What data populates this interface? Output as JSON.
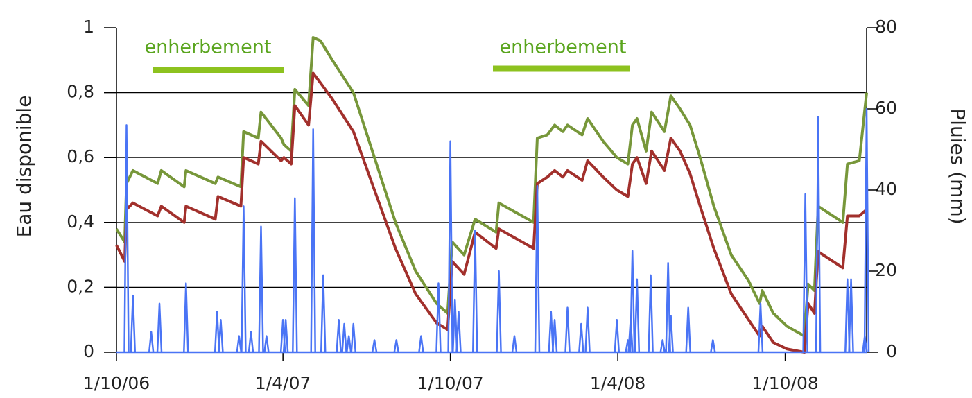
{
  "chart_data": {
    "type": "line",
    "annotations": [
      "enherbement",
      "enherbement"
    ],
    "ylabel": "Eau disponible",
    "y2label": "Pluies (mm)",
    "xlim": [
      "2006-10-01",
      "2008-12-29"
    ],
    "xticks": [
      {
        "value": "2006-10-01",
        "label": "1/10/06"
      },
      {
        "value": "2007-04-01",
        "label": "1/4/07"
      },
      {
        "value": "2007-10-01",
        "label": "1/10/07"
      },
      {
        "value": "2008-04-01",
        "label": "1/4/08"
      },
      {
        "value": "2008-10-01",
        "label": "1/10/08"
      }
    ],
    "ylim": [
      0,
      1
    ],
    "yticks": [
      0,
      {
        "value": 0.2,
        "label": "0,2"
      },
      {
        "value": 0.4,
        "label": "0,4"
      },
      {
        "value": 0.6,
        "label": "0,6"
      },
      {
        "value": 0.8,
        "label": "0,8"
      },
      1
    ],
    "y2lim": [
      0,
      80
    ],
    "y2ticks": [
      0,
      20,
      40,
      60,
      80
    ],
    "grid": true,
    "series": [
      {
        "color": "#77973a",
        "x": [
          "2006-10-01",
          "2006-10-10",
          "2006-10-12",
          "2006-10-19",
          "2006-11-15",
          "2006-11-19",
          "2006-12-14",
          "2006-12-16",
          "2007-01-17",
          "2007-01-20",
          "2007-02-14",
          "2007-02-17",
          "2007-03-05",
          "2007-03-08",
          "2007-03-30",
          "2007-04-02",
          "2007-04-10",
          "2007-04-14",
          "2007-04-29",
          "2007-05-04",
          "2007-05-12",
          "2007-05-25",
          "2007-06-17",
          "2007-07-10",
          "2007-08-02",
          "2007-08-24",
          "2007-09-16",
          "2007-09-28",
          "2007-10-03",
          "2007-10-16",
          "2007-10-28",
          "2007-11-20",
          "2007-11-23",
          "2007-12-31",
          "2008-01-04",
          "2008-01-15",
          "2008-01-23",
          "2008-02-01",
          "2008-02-06",
          "2008-02-22",
          "2008-02-28",
          "2008-03-16",
          "2008-03-31",
          "2008-04-12",
          "2008-04-17",
          "2008-04-22",
          "2008-05-02",
          "2008-05-08",
          "2008-05-22",
          "2008-05-29",
          "2008-06-08",
          "2008-06-19",
          "2008-06-30",
          "2008-07-15",
          "2008-08-03",
          "2008-08-22",
          "2008-09-03",
          "2008-09-06",
          "2008-09-18",
          "2008-10-03",
          "2008-10-22",
          "2008-10-26",
          "2008-11-02",
          "2008-11-06",
          "2008-12-03",
          "2008-12-08",
          "2008-12-21",
          "2008-12-29"
        ],
        "values": [
          0.38,
          0.34,
          0.52,
          0.56,
          0.52,
          0.56,
          0.51,
          0.56,
          0.52,
          0.54,
          0.51,
          0.68,
          0.66,
          0.74,
          0.66,
          0.64,
          0.62,
          0.81,
          0.76,
          0.97,
          0.96,
          0.9,
          0.8,
          0.6,
          0.4,
          0.25,
          0.15,
          0.12,
          0.34,
          0.3,
          0.41,
          0.37,
          0.46,
          0.4,
          0.66,
          0.67,
          0.7,
          0.68,
          0.7,
          0.67,
          0.72,
          0.65,
          0.6,
          0.58,
          0.7,
          0.72,
          0.62,
          0.74,
          0.68,
          0.79,
          0.75,
          0.7,
          0.6,
          0.45,
          0.3,
          0.22,
          0.15,
          0.19,
          0.12,
          0.08,
          0.05,
          0.21,
          0.19,
          0.45,
          0.4,
          0.58,
          0.59,
          0.8
        ]
      },
      {
        "color": "#a2302c",
        "x": [
          "2006-10-01",
          "2006-10-10",
          "2006-10-12",
          "2006-10-19",
          "2006-11-15",
          "2006-11-19",
          "2006-12-14",
          "2006-12-16",
          "2007-01-17",
          "2007-01-20",
          "2007-02-14",
          "2007-02-17",
          "2007-03-05",
          "2007-03-08",
          "2007-03-30",
          "2007-04-02",
          "2007-04-10",
          "2007-04-14",
          "2007-04-29",
          "2007-05-04",
          "2007-05-12",
          "2007-05-25",
          "2007-06-17",
          "2007-07-10",
          "2007-08-02",
          "2007-08-24",
          "2007-09-16",
          "2007-09-28",
          "2007-10-03",
          "2007-10-16",
          "2007-10-28",
          "2007-11-20",
          "2007-11-23",
          "2007-12-31",
          "2008-01-04",
          "2008-01-15",
          "2008-01-23",
          "2008-02-01",
          "2008-02-06",
          "2008-02-22",
          "2008-02-28",
          "2008-03-16",
          "2008-03-31",
          "2008-04-12",
          "2008-04-17",
          "2008-04-22",
          "2008-05-02",
          "2008-05-08",
          "2008-05-22",
          "2008-05-29",
          "2008-06-08",
          "2008-06-19",
          "2008-06-30",
          "2008-07-15",
          "2008-08-03",
          "2008-08-22",
          "2008-09-03",
          "2008-09-06",
          "2008-09-18",
          "2008-10-03",
          "2008-10-22",
          "2008-10-26",
          "2008-11-02",
          "2008-11-06",
          "2008-12-03",
          "2008-12-08",
          "2008-12-21",
          "2008-12-29"
        ],
        "values": [
          0.33,
          0.28,
          0.44,
          0.46,
          0.42,
          0.45,
          0.4,
          0.45,
          0.41,
          0.48,
          0.45,
          0.6,
          0.58,
          0.65,
          0.59,
          0.6,
          0.58,
          0.76,
          0.7,
          0.86,
          0.83,
          0.78,
          0.68,
          0.5,
          0.32,
          0.18,
          0.09,
          0.07,
          0.28,
          0.24,
          0.37,
          0.32,
          0.38,
          0.32,
          0.52,
          0.54,
          0.56,
          0.54,
          0.56,
          0.53,
          0.59,
          0.54,
          0.5,
          0.48,
          0.58,
          0.6,
          0.52,
          0.62,
          0.56,
          0.66,
          0.62,
          0.55,
          0.45,
          0.32,
          0.18,
          0.1,
          0.05,
          0.08,
          0.03,
          0.01,
          0.0,
          0.15,
          0.12,
          0.31,
          0.26,
          0.42,
          0.42,
          0.44
        ]
      },
      {
        "type": "bar",
        "axis": "y2",
        "color": "#4a74f5",
        "x": [
          "2006-10-12",
          "2006-10-19",
          "2006-11-08",
          "2006-11-17",
          "2006-12-16",
          "2007-01-19",
          "2007-01-23",
          "2007-02-12",
          "2007-02-17",
          "2007-02-25",
          "2007-03-08",
          "2007-03-14",
          "2007-04-01",
          "2007-04-04",
          "2007-04-14",
          "2007-05-04",
          "2007-05-15",
          "2007-06-01",
          "2007-06-07",
          "2007-06-12",
          "2007-06-17",
          "2007-07-10",
          "2007-08-03",
          "2007-08-30",
          "2007-09-18",
          "2007-10-01",
          "2007-10-06",
          "2007-10-10",
          "2007-10-28",
          "2007-11-23",
          "2007-12-10",
          "2008-01-04",
          "2008-01-19",
          "2008-01-23",
          "2008-02-06",
          "2008-02-21",
          "2008-02-28",
          "2008-03-31",
          "2008-04-12",
          "2008-04-15",
          "2008-04-17",
          "2008-04-22",
          "2008-05-07",
          "2008-05-20",
          "2008-05-26",
          "2008-05-29",
          "2008-06-17",
          "2008-07-14",
          "2008-09-04",
          "2008-10-23",
          "2008-11-06",
          "2008-12-08",
          "2008-12-12",
          "2008-12-27",
          "2008-12-29"
        ],
        "values": [
          56,
          14,
          5,
          12,
          17,
          10,
          8,
          4,
          36,
          5,
          31,
          4,
          8,
          8,
          38,
          55,
          19,
          8,
          7,
          4,
          7,
          3,
          3,
          4,
          17,
          52,
          13,
          10,
          30,
          20,
          4,
          41,
          10,
          8,
          11,
          7,
          11,
          8,
          3,
          8,
          25,
          18,
          19,
          3,
          22,
          9,
          11,
          3,
          12,
          39,
          58,
          18,
          18,
          4,
          60
        ]
      }
    ]
  }
}
